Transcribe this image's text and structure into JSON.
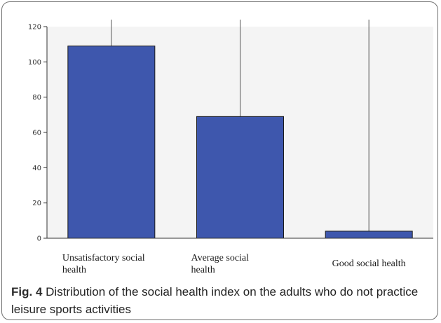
{
  "figure": {
    "label": "Fig. 4",
    "caption": "Distribution of the social health index on the adults who do not practice leisure sports activities"
  },
  "chart_data": {
    "type": "bar",
    "categories": [
      [
        "Unsatisfactory social",
        "health"
      ],
      [
        "Average social",
        "health"
      ],
      [
        "Good social health"
      ]
    ],
    "values": [
      109,
      69,
      4
    ],
    "title": "",
    "xlabel": "",
    "ylabel": "",
    "ylim": [
      0,
      120
    ],
    "yticks": [
      0,
      20,
      40,
      60,
      80,
      100,
      120
    ],
    "grid": "vertical lines at category centers",
    "colors": {
      "bar": "#3e57ad",
      "bar_stroke": "#1a1a1a",
      "plot_bg": "#f4f4f4",
      "axis": "#333333"
    }
  }
}
